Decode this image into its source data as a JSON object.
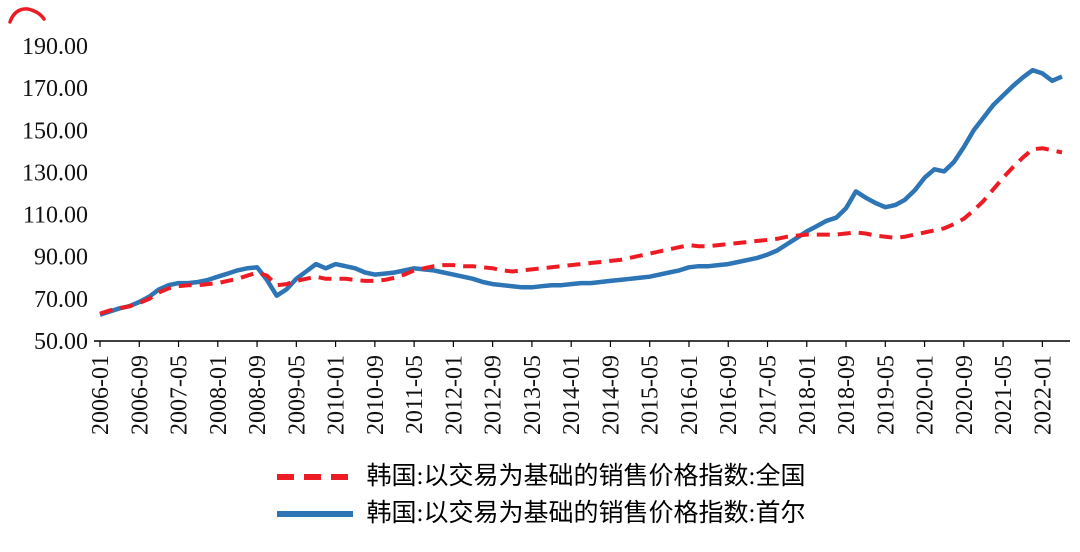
{
  "chart_data": {
    "type": "line",
    "title": "",
    "xlabel": "",
    "ylabel": "",
    "ylim": [
      50,
      190
    ],
    "grid": false,
    "legend_position": "bottom",
    "y_ticks": [
      "190.00",
      "170.00",
      "150.00",
      "130.00",
      "110.00",
      "90.00",
      "70.00",
      "50.00"
    ],
    "x_labels": [
      "2006-01",
      "2006-09",
      "2007-05",
      "2008-01",
      "2008-09",
      "2009-05",
      "2010-01",
      "2010-09",
      "2011-05",
      "2012-01",
      "2012-09",
      "2013-05",
      "2014-01",
      "2014-09",
      "2015-05",
      "2016-01",
      "2016-09",
      "2017-05",
      "2018-01",
      "2018-09",
      "2019-05",
      "2020-01",
      "2020-09",
      "2021-05",
      "2022-01"
    ],
    "x_tick_every": 4,
    "x_start": "2006-01",
    "x_step_months": 2,
    "series": [
      {
        "name": "韩国:以交易为基础的销售价格指数:全国",
        "color": "#ed1c24",
        "style": "dashed",
        "values": [
          63.0,
          64.5,
          65.5,
          66.5,
          68.0,
          70.0,
          73.0,
          75.0,
          76.0,
          76.5,
          76.5,
          77.0,
          77.5,
          78.5,
          79.5,
          81.0,
          82.5,
          81.0,
          76.5,
          77.0,
          78.5,
          79.5,
          80.5,
          79.5,
          79.5,
          79.5,
          79.0,
          78.5,
          78.5,
          79.0,
          80.0,
          81.5,
          83.5,
          84.5,
          85.5,
          86.0,
          86.0,
          85.5,
          85.5,
          85.0,
          84.5,
          83.5,
          83.0,
          83.5,
          84.0,
          84.5,
          85.0,
          85.5,
          86.0,
          86.5,
          87.0,
          87.5,
          88.0,
          88.5,
          89.5,
          90.5,
          91.5,
          92.5,
          93.5,
          94.5,
          95.5,
          95.0,
          95.0,
          95.5,
          96.0,
          96.5,
          97.0,
          97.5,
          98.0,
          98.5,
          99.5,
          100.0,
          100.5,
          100.5,
          100.5,
          100.5,
          101.0,
          101.5,
          101.0,
          100.0,
          99.5,
          99.0,
          99.5,
          100.5,
          101.5,
          102.5,
          103.5,
          105.5,
          108.0,
          112.0,
          116.5,
          122.0,
          127.5,
          132.5,
          137.0,
          141.0,
          141.5,
          140.5,
          139.5
        ]
      },
      {
        "name": "韩国:以交易为基础的销售价格指数:首尔",
        "color": "#2e75b6",
        "style": "solid",
        "values": [
          62.5,
          64.0,
          65.5,
          66.5,
          68.5,
          71.0,
          74.5,
          76.5,
          77.5,
          77.5,
          78.0,
          79.0,
          80.5,
          82.0,
          83.5,
          84.5,
          85.0,
          79.0,
          71.5,
          74.5,
          79.5,
          83.0,
          86.5,
          84.5,
          86.5,
          85.5,
          84.5,
          82.5,
          81.5,
          82.0,
          82.5,
          83.5,
          84.5,
          84.0,
          83.5,
          82.5,
          81.5,
          80.5,
          79.5,
          78.0,
          77.0,
          76.5,
          76.0,
          75.5,
          75.5,
          76.0,
          76.5,
          76.5,
          77.0,
          77.5,
          77.5,
          78.0,
          78.5,
          79.0,
          79.5,
          80.0,
          80.5,
          81.5,
          82.5,
          83.5,
          85.0,
          85.5,
          85.5,
          86.0,
          86.5,
          87.5,
          88.5,
          89.5,
          91.0,
          93.0,
          96.0,
          99.0,
          102.0,
          104.5,
          107.0,
          108.5,
          113.0,
          121.0,
          118.0,
          115.5,
          113.5,
          114.5,
          117.0,
          121.5,
          127.5,
          131.5,
          130.5,
          135.0,
          142.0,
          150.0,
          156.0,
          162.0,
          166.5,
          171.0,
          175.0,
          178.5,
          177.0,
          173.5,
          175.5
        ]
      }
    ]
  },
  "decoration": {
    "red_mark": "true"
  }
}
